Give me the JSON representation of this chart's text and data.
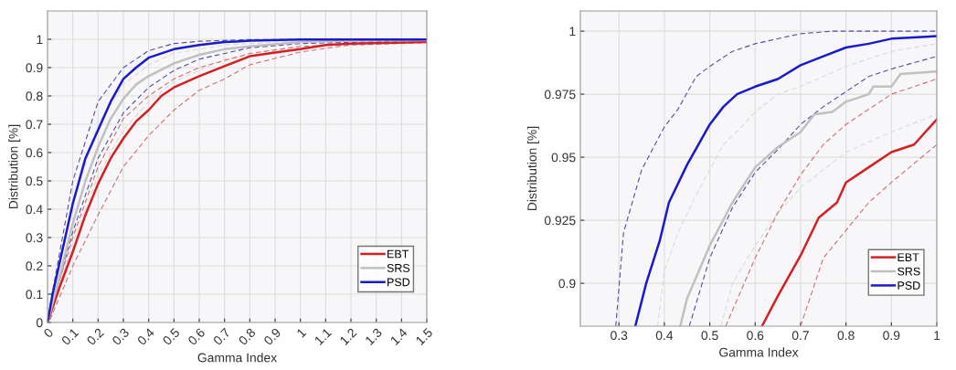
{
  "chart_data": [
    {
      "type": "line",
      "xlabel": "Gamma Index",
      "ylabel": "Distribution [%]",
      "xlim": [
        0,
        1.5
      ],
      "ylim": [
        0,
        1.1
      ],
      "xticks": [
        0,
        0.1,
        0.2,
        0.3,
        0.4,
        0.5,
        0.6,
        0.7,
        0.8,
        0.9,
        1,
        1.1,
        1.2,
        1.3,
        1.4,
        1.5
      ],
      "yticks": [
        0,
        0.1,
        0.2,
        0.3,
        0.4,
        0.5,
        0.6,
        0.7,
        0.8,
        0.9,
        1
      ],
      "grid": true,
      "legend": "bottom right",
      "series": [
        {
          "color": "#5050a0",
          "line_style": "dashed",
          "x": [
            0.01,
            0.1,
            0.2,
            0.3,
            0.4,
            0.5,
            0.6,
            0.8,
            1.5
          ],
          "values": [
            0.06,
            0.5,
            0.78,
            0.9,
            0.96,
            0.985,
            0.993,
            0.999,
            1.0
          ]
        },
        {
          "color": "#5050a0",
          "line_style": "dashed",
          "x": [
            0.01,
            0.1,
            0.2,
            0.3,
            0.4,
            0.5,
            0.6,
            0.8,
            1.0,
            1.5
          ],
          "values": [
            0.03,
            0.32,
            0.58,
            0.74,
            0.83,
            0.89,
            0.93,
            0.97,
            0.985,
            0.995
          ]
        },
        {
          "color": "#dadada",
          "line_style": "dashed",
          "x": [
            0.01,
            0.1,
            0.2,
            0.3,
            0.4,
            0.5,
            0.7,
            1.0,
            1.5
          ],
          "values": [
            0.05,
            0.42,
            0.7,
            0.84,
            0.91,
            0.95,
            0.98,
            0.995,
            0.999
          ]
        },
        {
          "color": "#dadada",
          "line_style": "dashed",
          "x": [
            0.01,
            0.1,
            0.2,
            0.3,
            0.4,
            0.5,
            0.7,
            1.0,
            1.5
          ],
          "values": [
            0.02,
            0.28,
            0.52,
            0.68,
            0.78,
            0.85,
            0.93,
            0.97,
            0.99
          ]
        },
        {
          "color": "#d07070",
          "line_style": "dashed",
          "x": [
            0.01,
            0.1,
            0.2,
            0.3,
            0.4,
            0.5,
            0.6,
            0.8,
            1.0,
            1.5
          ],
          "values": [
            0.04,
            0.3,
            0.55,
            0.72,
            0.8,
            0.86,
            0.9,
            0.95,
            0.975,
            0.992
          ]
        },
        {
          "color": "#d07070",
          "line_style": "dashed",
          "x": [
            0.01,
            0.1,
            0.2,
            0.3,
            0.4,
            0.5,
            0.6,
            0.7,
            0.8,
            1.0,
            1.2,
            1.5
          ],
          "values": [
            0.01,
            0.2,
            0.38,
            0.55,
            0.66,
            0.75,
            0.82,
            0.86,
            0.91,
            0.955,
            0.98,
            0.988
          ]
        },
        {
          "name": "EBT",
          "color": "#d42020",
          "x": [
            0,
            0.05,
            0.1,
            0.15,
            0.2,
            0.25,
            0.3,
            0.35,
            0.4,
            0.45,
            0.5,
            0.6,
            0.7,
            0.8,
            0.9,
            1.0,
            1.1,
            1.2,
            1.5
          ],
          "values": [
            0,
            0.13,
            0.25,
            0.38,
            0.49,
            0.58,
            0.65,
            0.71,
            0.75,
            0.8,
            0.83,
            0.87,
            0.905,
            0.94,
            0.953,
            0.965,
            0.98,
            0.985,
            0.99
          ]
        },
        {
          "name": "SRS",
          "color": "#c0c0c0",
          "x": [
            0,
            0.05,
            0.1,
            0.15,
            0.2,
            0.25,
            0.3,
            0.35,
            0.4,
            0.5,
            0.6,
            0.7,
            0.8,
            1.0,
            1.2,
            1.5
          ],
          "values": [
            0,
            0.17,
            0.35,
            0.5,
            0.62,
            0.72,
            0.79,
            0.84,
            0.87,
            0.915,
            0.945,
            0.965,
            0.975,
            0.99,
            0.995,
            0.997
          ]
        },
        {
          "name": "PSD",
          "color": "#1a1acc",
          "x": [
            0,
            0.02,
            0.05,
            0.1,
            0.15,
            0.2,
            0.25,
            0.3,
            0.35,
            0.4,
            0.5,
            0.6,
            0.7,
            0.8,
            1.0,
            1.5
          ],
          "values": [
            0,
            0.1,
            0.22,
            0.42,
            0.58,
            0.68,
            0.78,
            0.86,
            0.9,
            0.935,
            0.965,
            0.98,
            0.99,
            0.995,
            0.999,
            0.999
          ]
        }
      ]
    },
    {
      "type": "line",
      "xlabel": "Gamma Index",
      "ylabel": "Distribution [%]",
      "xlim": [
        0.215,
        1.0
      ],
      "ylim": [
        0.883,
        1.008
      ],
      "xticks": [
        0.3,
        0.4,
        0.5,
        0.6,
        0.7,
        0.8,
        0.9,
        1
      ],
      "yticks": [
        0.9,
        0.925,
        0.95,
        0.975,
        1
      ],
      "grid": true,
      "legend": "bottom right",
      "series": [
        {
          "color": "#5050a0",
          "line_style": "dashed",
          "x": [
            0.293,
            0.31,
            0.35,
            0.4,
            0.43,
            0.47,
            0.5,
            0.55,
            0.6,
            0.7,
            0.77,
            1.0
          ],
          "values": [
            0.883,
            0.92,
            0.945,
            0.962,
            0.969,
            0.982,
            0.986,
            0.992,
            0.995,
            0.999,
            1.0,
            1.0
          ]
        },
        {
          "color": "#5050a0",
          "line_style": "dashed",
          "x": [
            0.455,
            0.5,
            0.55,
            0.6,
            0.65,
            0.7,
            0.75,
            0.8,
            0.85,
            0.9,
            1.0
          ],
          "values": [
            0.883,
            0.91,
            0.93,
            0.944,
            0.953,
            0.963,
            0.97,
            0.976,
            0.982,
            0.985,
            0.99
          ]
        },
        {
          "color": "#dadada",
          "line_style": "dashed",
          "x": [
            0.385,
            0.4,
            0.43,
            0.47,
            0.5,
            0.53,
            0.57,
            0.6,
            0.65,
            0.7,
            0.8,
            0.9,
            1.0
          ],
          "values": [
            0.883,
            0.905,
            0.92,
            0.935,
            0.945,
            0.955,
            0.962,
            0.968,
            0.975,
            0.978,
            0.986,
            0.992,
            0.995
          ]
        },
        {
          "color": "#dadada",
          "line_style": "dashed",
          "x": [
            0.525,
            0.55,
            0.6,
            0.65,
            0.7,
            0.75,
            0.8,
            0.9,
            1.0
          ],
          "values": [
            0.883,
            0.9,
            0.915,
            0.928,
            0.938,
            0.945,
            0.952,
            0.96,
            0.967
          ]
        },
        {
          "color": "#d07070",
          "line_style": "dashed",
          "x": [
            0.535,
            0.6,
            0.65,
            0.7,
            0.75,
            0.8,
            0.9,
            1.0
          ],
          "values": [
            0.883,
            0.91,
            0.928,
            0.943,
            0.955,
            0.963,
            0.975,
            0.981
          ]
        },
        {
          "color": "#d07070",
          "line_style": "dashed",
          "x": [
            0.7,
            0.75,
            0.8,
            0.85,
            0.9,
            1.0
          ],
          "values": [
            0.883,
            0.91,
            0.921,
            0.932,
            0.94,
            0.955
          ]
        },
        {
          "name": "EBT",
          "color": "#d42020",
          "x": [
            0.615,
            0.65,
            0.7,
            0.74,
            0.78,
            0.8,
            0.85,
            0.9,
            0.95,
            1.0
          ],
          "values": [
            0.883,
            0.895,
            0.911,
            0.926,
            0.932,
            0.94,
            0.946,
            0.952,
            0.955,
            0.965
          ]
        },
        {
          "name": "SRS",
          "color": "#c0c0c0",
          "x": [
            0.435,
            0.45,
            0.5,
            0.55,
            0.6,
            0.65,
            0.7,
            0.73,
            0.77,
            0.8,
            0.85,
            0.86,
            0.9,
            0.92,
            1.0
          ],
          "values": [
            0.883,
            0.894,
            0.915,
            0.932,
            0.946,
            0.954,
            0.96,
            0.967,
            0.968,
            0.972,
            0.975,
            0.978,
            0.978,
            0.983,
            0.984
          ]
        },
        {
          "name": "PSD",
          "color": "#1a1acc",
          "x": [
            0.336,
            0.36,
            0.39,
            0.41,
            0.45,
            0.5,
            0.53,
            0.56,
            0.6,
            0.65,
            0.7,
            0.75,
            0.8,
            0.85,
            0.9,
            1.0
          ],
          "values": [
            0.883,
            0.9,
            0.917,
            0.932,
            0.947,
            0.963,
            0.97,
            0.975,
            0.978,
            0.981,
            0.9865,
            0.99,
            0.9935,
            0.995,
            0.997,
            0.998
          ]
        }
      ]
    }
  ]
}
